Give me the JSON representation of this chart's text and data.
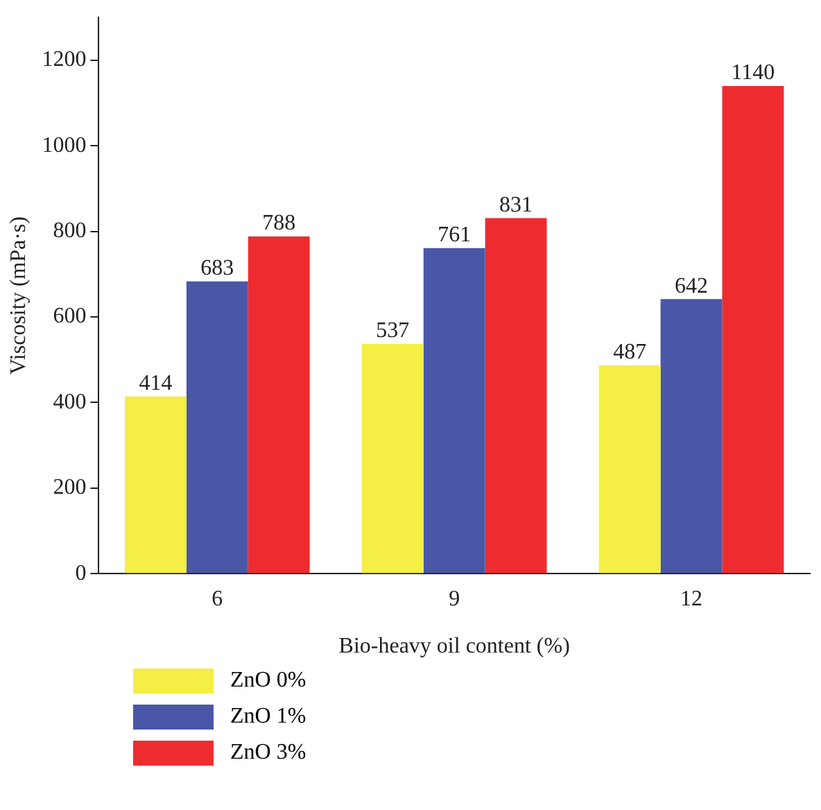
{
  "chart_data": {
    "type": "bar",
    "xlabel": "Bio-heavy oil content (%)",
    "ylabel": "Viscosity (mPa·s)",
    "categories": [
      "6",
      "9",
      "12"
    ],
    "series": [
      {
        "name": "ZnO 0%",
        "color": "#f4ee45",
        "values": [
          414,
          537,
          487
        ]
      },
      {
        "name": "ZnO 1%",
        "color": "#4a57a6",
        "values": [
          683,
          761,
          642
        ]
      },
      {
        "name": "ZnO 3%",
        "color": "#ee2c30",
        "values": [
          788,
          831,
          1140
        ]
      }
    ],
    "ylim": [
      0,
      1300
    ],
    "yticks": [
      0,
      200,
      400,
      600,
      800,
      1000,
      1200
    ],
    "grid": false,
    "legend": "bottom left",
    "data_labels": true
  }
}
